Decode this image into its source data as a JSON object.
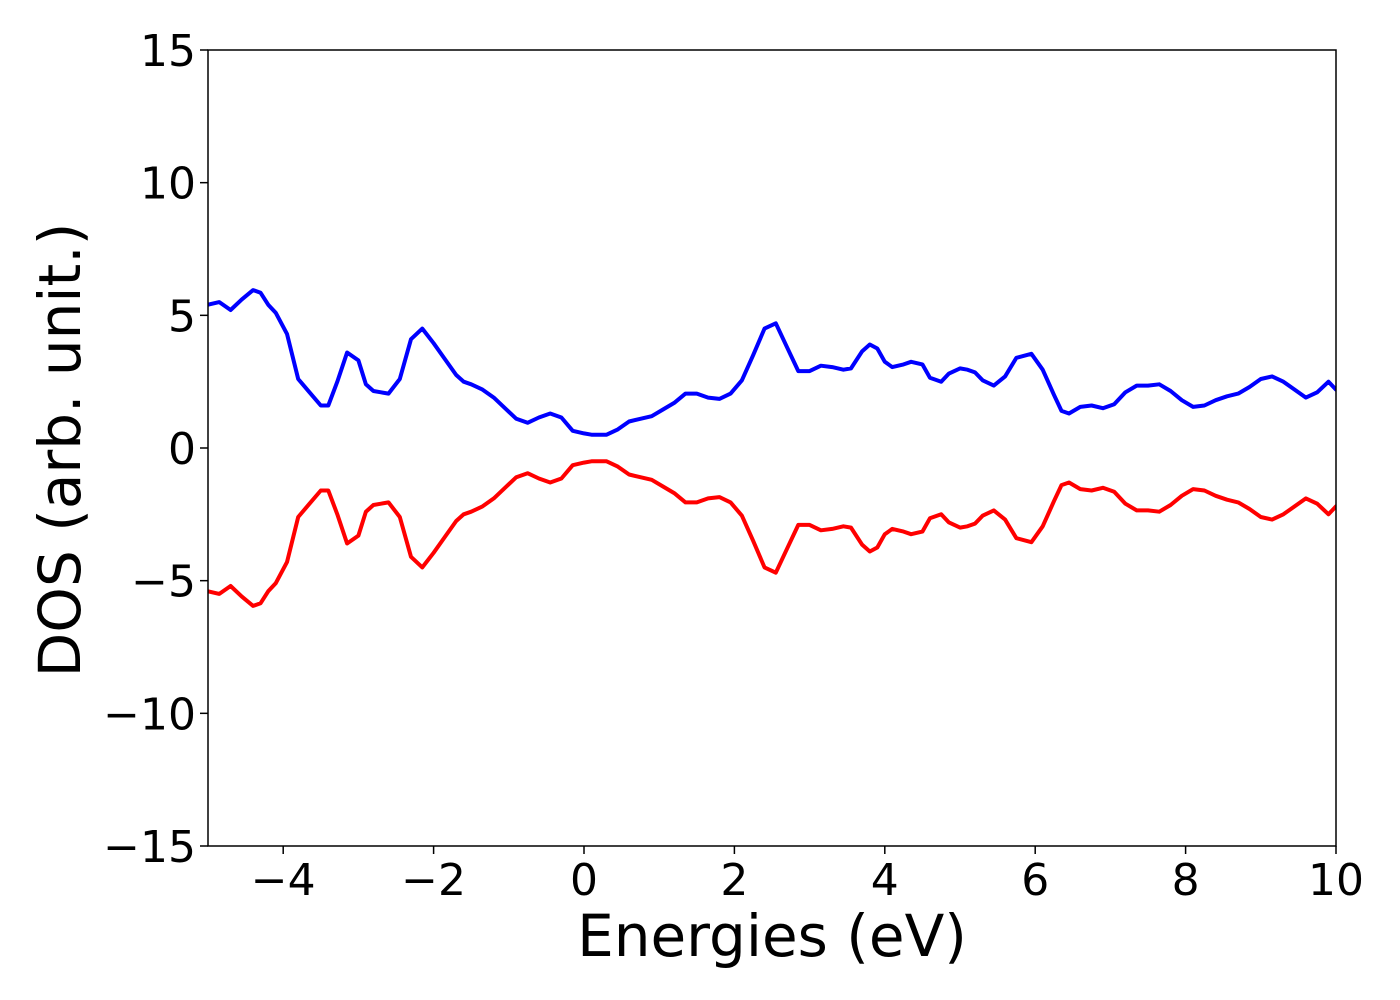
{
  "chart_data": {
    "type": "line",
    "title": "",
    "xlabel": "Energies (eV)",
    "ylabel": "DOS (arb. unit.)",
    "xlim": [
      -5,
      10
    ],
    "ylim": [
      -15,
      15
    ],
    "xticks": [
      -4,
      -2,
      0,
      2,
      4,
      6,
      8,
      10
    ],
    "xtick_labels": [
      "−4",
      "−2",
      "0",
      "2",
      "4",
      "6",
      "8",
      "10"
    ],
    "yticks": [
      -15,
      -10,
      -5,
      0,
      5,
      10,
      15
    ],
    "ytick_labels": [
      "−15",
      "−10",
      "−5",
      "0",
      "5",
      "10",
      "15"
    ],
    "grid": false,
    "series": [
      {
        "color": "#0000ff",
        "x": [
          -5.0,
          -4.85,
          -4.7,
          -4.55,
          -4.4,
          -4.3,
          -4.2,
          -4.1,
          -3.95,
          -3.8,
          -3.65,
          -3.5,
          -3.4,
          -3.28,
          -3.15,
          -3.0,
          -2.9,
          -2.8,
          -2.7,
          -2.6,
          -2.45,
          -2.3,
          -2.15,
          -2.0,
          -1.85,
          -1.7,
          -1.6,
          -1.5,
          -1.35,
          -1.2,
          -1.05,
          -0.9,
          -0.75,
          -0.6,
          -0.45,
          -0.3,
          -0.15,
          0.0,
          0.1,
          0.2,
          0.3,
          0.45,
          0.6,
          0.75,
          0.9,
          1.05,
          1.2,
          1.35,
          1.5,
          1.65,
          1.8,
          1.95,
          2.1,
          2.25,
          2.4,
          2.55,
          2.7,
          2.85,
          3.0,
          3.15,
          3.3,
          3.45,
          3.55,
          3.7,
          3.8,
          3.9,
          4.0,
          4.1,
          4.25,
          4.35,
          4.5,
          4.6,
          4.75,
          4.85,
          5.0,
          5.1,
          5.2,
          5.3,
          5.45,
          5.6,
          5.75,
          5.95,
          6.1,
          6.25,
          6.35,
          6.45,
          6.6,
          6.75,
          6.9,
          7.05,
          7.2,
          7.35,
          7.5,
          7.65,
          7.8,
          7.95,
          8.1,
          8.25,
          8.4,
          8.55,
          8.7,
          8.85,
          9.0,
          9.15,
          9.3,
          9.45,
          9.6,
          9.75,
          9.9,
          10.0
        ],
        "y": [
          5.4,
          5.5,
          5.2,
          5.6,
          5.95,
          5.85,
          5.4,
          5.1,
          4.3,
          2.6,
          2.1,
          1.6,
          1.6,
          2.5,
          3.6,
          3.3,
          2.4,
          2.15,
          2.1,
          2.05,
          2.6,
          4.1,
          4.5,
          3.95,
          3.35,
          2.75,
          2.5,
          2.4,
          2.2,
          1.9,
          1.5,
          1.1,
          0.95,
          1.15,
          1.3,
          1.15,
          0.65,
          0.55,
          0.5,
          0.5,
          0.5,
          0.7,
          1.0,
          1.1,
          1.2,
          1.45,
          1.7,
          2.05,
          2.05,
          1.9,
          1.85,
          2.05,
          2.55,
          3.5,
          4.5,
          4.7,
          3.8,
          2.9,
          2.9,
          3.1,
          3.05,
          2.95,
          3.0,
          3.65,
          3.9,
          3.75,
          3.25,
          3.05,
          3.15,
          3.25,
          3.15,
          2.65,
          2.5,
          2.8,
          3.0,
          2.95,
          2.85,
          2.55,
          2.35,
          2.7,
          3.4,
          3.55,
          2.95,
          2.0,
          1.4,
          1.3,
          1.55,
          1.6,
          1.5,
          1.65,
          2.1,
          2.35,
          2.35,
          2.4,
          2.15,
          1.8,
          1.55,
          1.6,
          1.8,
          1.95,
          2.05,
          2.3,
          2.6,
          2.7,
          2.5,
          2.2,
          1.9,
          2.1,
          2.5,
          2.2
        ]
      },
      {
        "color": "#ff0000",
        "x": [
          -5.0,
          -4.85,
          -4.7,
          -4.55,
          -4.4,
          -4.3,
          -4.2,
          -4.1,
          -3.95,
          -3.8,
          -3.65,
          -3.5,
          -3.4,
          -3.28,
          -3.15,
          -3.0,
          -2.9,
          -2.8,
          -2.7,
          -2.6,
          -2.45,
          -2.3,
          -2.15,
          -2.0,
          -1.85,
          -1.7,
          -1.6,
          -1.5,
          -1.35,
          -1.2,
          -1.05,
          -0.9,
          -0.75,
          -0.6,
          -0.45,
          -0.3,
          -0.15,
          0.0,
          0.1,
          0.2,
          0.3,
          0.45,
          0.6,
          0.75,
          0.9,
          1.05,
          1.2,
          1.35,
          1.5,
          1.65,
          1.8,
          1.95,
          2.1,
          2.25,
          2.4,
          2.55,
          2.7,
          2.85,
          3.0,
          3.15,
          3.3,
          3.45,
          3.55,
          3.7,
          3.8,
          3.9,
          4.0,
          4.1,
          4.25,
          4.35,
          4.5,
          4.6,
          4.75,
          4.85,
          5.0,
          5.1,
          5.2,
          5.3,
          5.45,
          5.6,
          5.75,
          5.95,
          6.1,
          6.25,
          6.35,
          6.45,
          6.6,
          6.75,
          6.9,
          7.05,
          7.2,
          7.35,
          7.5,
          7.65,
          7.8,
          7.95,
          8.1,
          8.25,
          8.4,
          8.55,
          8.7,
          8.85,
          9.0,
          9.15,
          9.3,
          9.45,
          9.6,
          9.75,
          9.9,
          10.0
        ],
        "y": [
          -5.4,
          -5.5,
          -5.2,
          -5.6,
          -5.95,
          -5.85,
          -5.4,
          -5.1,
          -4.3,
          -2.6,
          -2.1,
          -1.6,
          -1.6,
          -2.5,
          -3.6,
          -3.3,
          -2.4,
          -2.15,
          -2.1,
          -2.05,
          -2.6,
          -4.1,
          -4.5,
          -3.95,
          -3.35,
          -2.75,
          -2.5,
          -2.4,
          -2.2,
          -1.9,
          -1.5,
          -1.1,
          -0.95,
          -1.15,
          -1.3,
          -1.15,
          -0.65,
          -0.55,
          -0.5,
          -0.5,
          -0.5,
          -0.7,
          -1.0,
          -1.1,
          -1.2,
          -1.45,
          -1.7,
          -2.05,
          -2.05,
          -1.9,
          -1.85,
          -2.05,
          -2.55,
          -3.5,
          -4.5,
          -4.7,
          -3.8,
          -2.9,
          -2.9,
          -3.1,
          -3.05,
          -2.95,
          -3.0,
          -3.65,
          -3.9,
          -3.75,
          -3.25,
          -3.05,
          -3.15,
          -3.25,
          -3.15,
          -2.65,
          -2.5,
          -2.8,
          -3.0,
          -2.95,
          -2.85,
          -2.55,
          -2.35,
          -2.7,
          -3.4,
          -3.55,
          -2.95,
          -2.0,
          -1.4,
          -1.3,
          -1.55,
          -1.6,
          -1.5,
          -1.65,
          -2.1,
          -2.35,
          -2.35,
          -2.4,
          -2.15,
          -1.8,
          -1.55,
          -1.6,
          -1.8,
          -1.95,
          -2.05,
          -2.3,
          -2.6,
          -2.7,
          -2.5,
          -2.2,
          -1.9,
          -2.1,
          -2.5,
          -2.2
        ]
      }
    ]
  }
}
